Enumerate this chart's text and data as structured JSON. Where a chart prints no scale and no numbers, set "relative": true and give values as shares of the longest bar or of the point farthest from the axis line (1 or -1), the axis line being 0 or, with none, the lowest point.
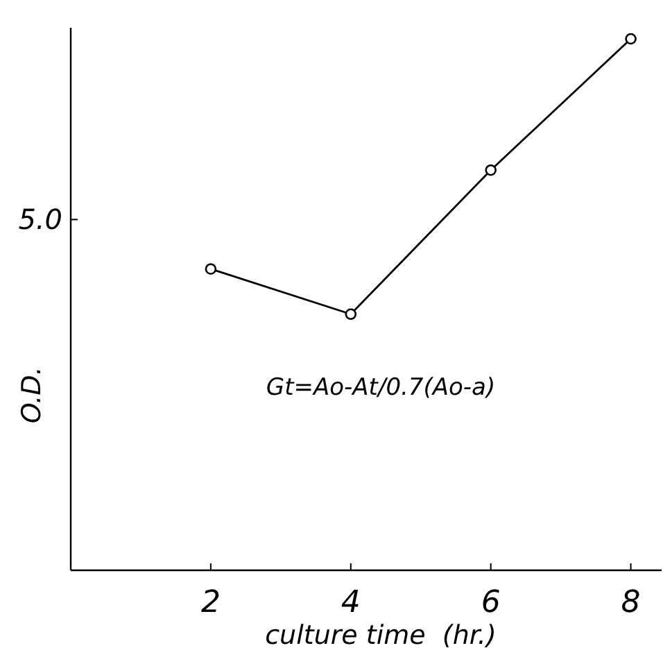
{
  "chart_data": {
    "type": "line",
    "relative": true,
    "xlabel": "culture time  (hr.)",
    "ylabel": "O.D.",
    "x": [
      2,
      4,
      6,
      8
    ],
    "xlim": [
      0,
      8.44
    ],
    "xticks": [
      2,
      4,
      6,
      8
    ],
    "series": [
      {
        "color": "#000000",
        "values": [
          0.567,
          0.482,
          0.753,
          1
        ]
      }
    ],
    "marker": "circle",
    "grid": false,
    "annotations": [
      "5.0",
      "Gt=Ao-At/0.7(Ao-a)"
    ]
  }
}
